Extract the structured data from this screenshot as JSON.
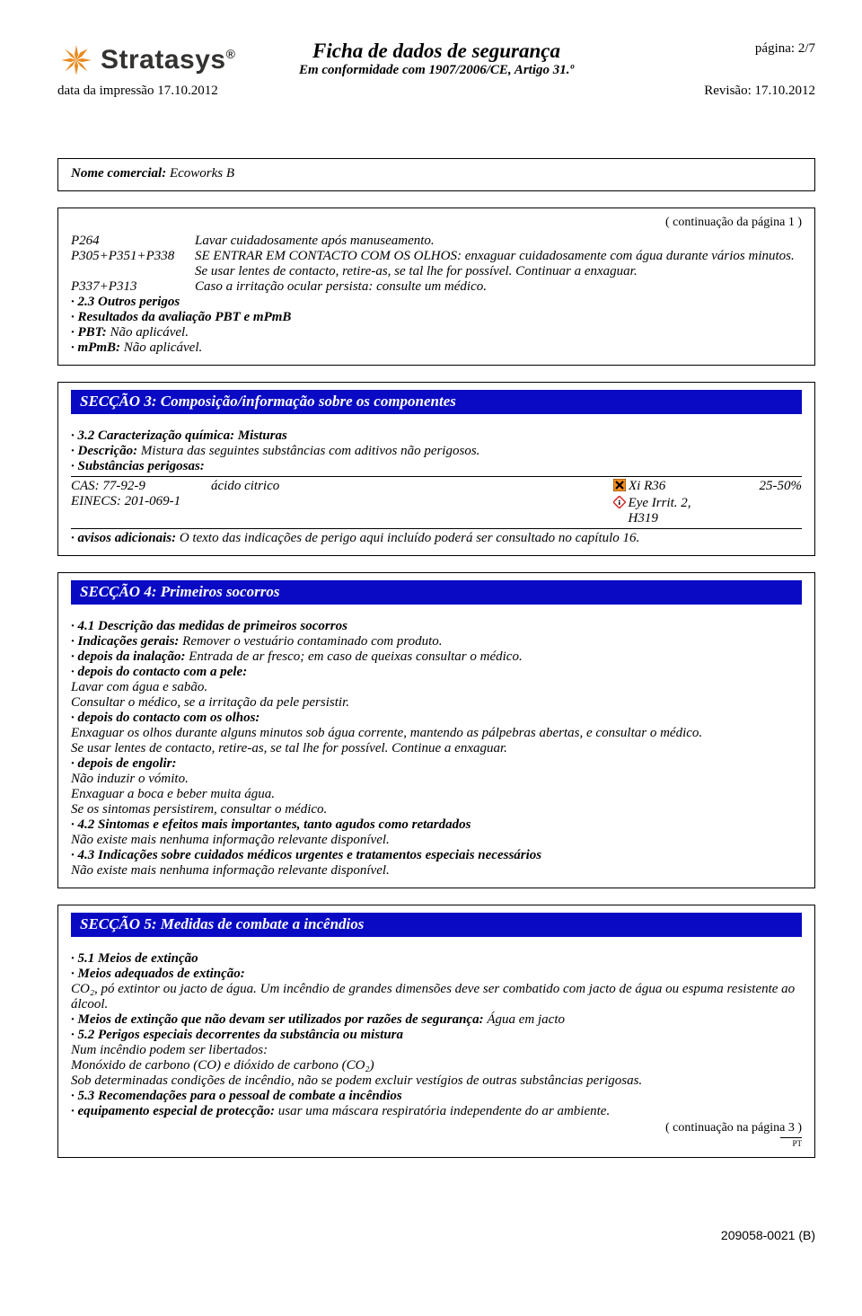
{
  "header": {
    "pageLabel": "página: 2/7",
    "brand": "Stratasys",
    "docTitle": "Ficha de dados de segurança",
    "docSubtitle": "Em conformidade com 1907/2006/CE, Artigo 31.º",
    "printLabel": "data da impressão 17.10.2012",
    "revisionLabel": "Revisão: 17.10.2012"
  },
  "productBox": {
    "label": "Nome comercial: ",
    "value": "Ecoworks B"
  },
  "section2": {
    "contNote": "( continuação da página 1 )",
    "rows": [
      {
        "code": "P264",
        "text": "Lavar cuidadosamente após manuseamento."
      },
      {
        "code": "P305+P351+P338",
        "text": "SE ENTRAR EM CONTACTO COM OS OLHOS: enxaguar cuidadosamente com água durante vários minutos. Se usar lentes de contacto, retire-as, se tal lhe for possível. Continuar a enxaguar."
      },
      {
        "code": "P337+P313",
        "text": "Caso a irritação ocular persista: consulte um médico."
      }
    ],
    "bullets": [
      {
        "lead": "2.3 Outros perigos",
        "text": ""
      },
      {
        "lead": "Resultados da avaliação PBT e mPmB",
        "text": ""
      },
      {
        "lead": "PBT:",
        "text": " Não aplicável."
      },
      {
        "lead": "mPmB:",
        "text": " Não aplicável."
      }
    ]
  },
  "section3": {
    "title": "SECÇÃO 3: Composição/informação sobre os componentes",
    "line1Lead": "3.2 Caracterização química: Misturas",
    "descLead": "Descrição:",
    "descText": " Mistura das seguintes substâncias com aditivos não perigosos.",
    "tableHead": "Substâncias perigosas:",
    "row": {
      "cas": "CAS: 77-92-9",
      "einecs": "EINECS: 201-069-1",
      "name": "ácido citrico",
      "hazA": "Xi R36",
      "hazB": "Eye Irrit. 2, H319",
      "pct": "25-50%"
    },
    "noteLead": "avisos adicionais:",
    "noteText": " O texto das indicações de perigo aqui incluído poderá ser consultado no capítulo 16."
  },
  "section4": {
    "title": "SECÇÃO 4: Primeiros socorros",
    "lines": [
      {
        "lead": "4.1 Descrição das medidas de primeiros socorros",
        "text": "",
        "dot": true
      },
      {
        "lead": "Indicações gerais:",
        "text": " Remover o vestuário contaminado com produto.",
        "dot": true
      },
      {
        "lead": "depois da inalação:",
        "text": " Entrada de ar fresco; em caso de queixas consultar o médico.",
        "dot": true
      },
      {
        "lead": "depois do contacto com a pele:",
        "text": "",
        "dot": true
      },
      {
        "lead": "",
        "text": "Lavar com água e sabão.",
        "dot": false
      },
      {
        "lead": "",
        "text": "Consultar o médico, se a irritação da pele persistir.",
        "dot": false
      },
      {
        "lead": "depois do contacto com os olhos:",
        "text": "",
        "dot": true
      },
      {
        "lead": "",
        "text": "Enxaguar os olhos durante alguns minutos sob água corrente, mantendo as pálpebras abertas, e consultar o médico.",
        "dot": false
      },
      {
        "lead": "",
        "text": "Se usar lentes de contacto, retire-as, se tal lhe for possível. Continue a enxaguar.",
        "dot": false
      },
      {
        "lead": "depois de engolir:",
        "text": "",
        "dot": true
      },
      {
        "lead": "",
        "text": "Não induzir o vómito.",
        "dot": false
      },
      {
        "lead": "",
        "text": "Enxaguar a boca e beber muita água.",
        "dot": false
      },
      {
        "lead": "",
        "text": "Se os sintomas persistirem, consultar o médico.",
        "dot": false
      },
      {
        "lead": "4.2 Sintomas e efeitos mais importantes, tanto agudos como retardados",
        "text": "",
        "dot": true
      },
      {
        "lead": "",
        "text": "Não existe mais nenhuma informação relevante disponível.",
        "dot": false
      },
      {
        "lead": "4.3 Indicações sobre cuidados médicos urgentes e tratamentos especiais necessários",
        "text": "",
        "dot": true
      },
      {
        "lead": "",
        "text": "Não existe mais nenhuma informação relevante disponível.",
        "dot": false
      }
    ]
  },
  "section5": {
    "title": "SECÇÃO 5: Medidas de combate a incêndios",
    "lines": [
      {
        "lead": "5.1 Meios de extinção",
        "text": "",
        "dot": true
      },
      {
        "lead": "Meios adequados de extinção:",
        "text": "",
        "dot": true
      },
      {
        "lead": "",
        "text": "CO₂, pó extintor ou jacto de água. Um incêndio de grandes dimensões deve ser combatido com jacto de água ou espuma resistente ao álcool.",
        "dot": false
      },
      {
        "lead": "Meios de extinção que não devam ser utilizados por razões de segurança:",
        "text": " Água em jacto",
        "dot": true
      },
      {
        "lead": "5.2 Perigos especiais decorrentes da substância ou mistura",
        "text": "",
        "dot": true
      },
      {
        "lead": "",
        "text": "Num incêndio podem ser libertados:",
        "dot": false
      },
      {
        "lead": "",
        "text": "Monóxido de carbono (CO) e dióxido de carbono (CO₂)",
        "dot": false
      },
      {
        "lead": "",
        "text": "Sob determinadas condições de incêndio, não se podem excluir vestígios de outras substâncias perigosas.",
        "dot": false
      },
      {
        "lead": "5.3 Recomendações para o pessoal de combate a incêndios",
        "text": "",
        "dot": true
      },
      {
        "lead": "equipamento especial de protecção:",
        "text": " usar uma máscara respiratória independente do ar ambiente.",
        "dot": true
      }
    ],
    "contNote": "( continuação na página 3 )",
    "ptMark": "PT"
  },
  "footer": {
    "code": "209058-0021 (B)"
  },
  "colors": {
    "sectionBlue": "#0a0ac4",
    "logoOrange": "#e78b1f",
    "hazOrange": "#f28c1c",
    "hazRed": "#d22"
  }
}
